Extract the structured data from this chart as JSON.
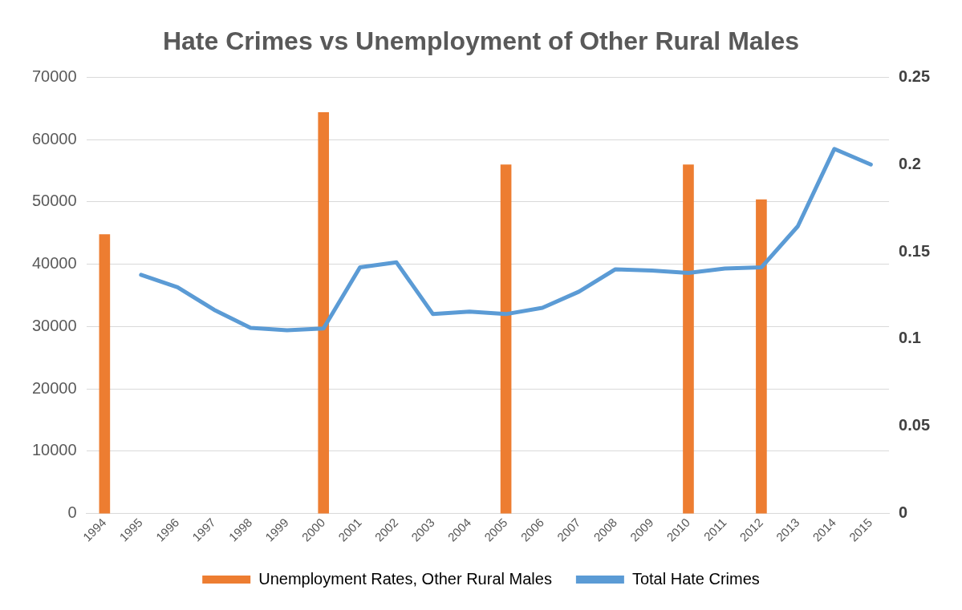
{
  "chart_data": {
    "type": "bar",
    "title": "Hate Crimes vs Unemployment of Other Rural Males",
    "categories": [
      "1994",
      "1995",
      "1996",
      "1997",
      "1998",
      "1999",
      "2000",
      "2001",
      "2002",
      "2003",
      "2004",
      "2005",
      "2006",
      "2007",
      "2008",
      "2009",
      "2010",
      "2011",
      "2012",
      "2013",
      "2014",
      "2015"
    ],
    "series": [
      {
        "name": "Unemployment Rates, Other Rural Males",
        "axis": "y2",
        "color": "#ed7d31",
        "values": [
          0.16,
          null,
          null,
          null,
          null,
          null,
          0.23,
          null,
          null,
          null,
          null,
          0.2,
          null,
          null,
          null,
          null,
          0.2,
          null,
          0.18,
          null,
          null,
          null
        ]
      },
      {
        "name": "Total Hate Crimes",
        "type": "line",
        "axis": "y",
        "color": "#5b9bd5",
        "values": [
          null,
          38300,
          36300,
          32700,
          29800,
          29400,
          29700,
          39500,
          40300,
          32000,
          32400,
          32000,
          33000,
          35600,
          39200,
          39000,
          38600,
          39300,
          39500,
          46100,
          58500,
          56000
        ]
      }
    ],
    "ylim": [
      0,
      70000
    ],
    "yticks": [
      0,
      10000,
      20000,
      30000,
      40000,
      50000,
      60000,
      70000
    ],
    "y2lim": [
      0,
      0.25
    ],
    "y2ticks": [
      0,
      0.05,
      0.1,
      0.15,
      0.2,
      0.25
    ],
    "grid": "y",
    "legend": "bottom",
    "marker": "none",
    "line_style": "solid"
  }
}
